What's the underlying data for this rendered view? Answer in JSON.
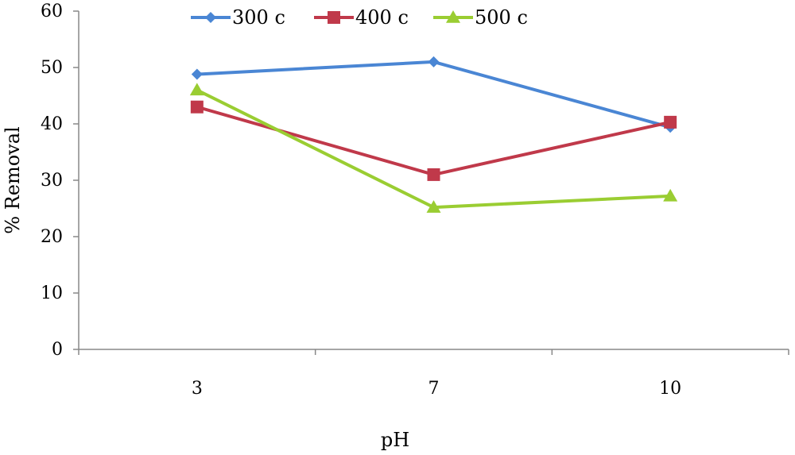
{
  "chart_data": {
    "type": "line",
    "x": [
      "3",
      "7",
      "10"
    ],
    "xlabel": "pH",
    "ylabel": "% Removal",
    "ylim": [
      0,
      60
    ],
    "yticks": [
      "0",
      "10",
      "20",
      "30",
      "40",
      "50",
      "60"
    ],
    "grid": false,
    "legend_position": "top",
    "series": [
      {
        "name": "300 c",
        "values": [
          48.8,
          51.0,
          39.4
        ],
        "color": "#4a86d4",
        "marker": "diamond"
      },
      {
        "name": "400 c",
        "values": [
          43.0,
          31.0,
          40.3
        ],
        "color": "#c0394a",
        "marker": "square"
      },
      {
        "name": "500 c",
        "values": [
          46.0,
          25.2,
          27.2
        ],
        "color": "#9acd32",
        "marker": "triangle"
      }
    ]
  }
}
